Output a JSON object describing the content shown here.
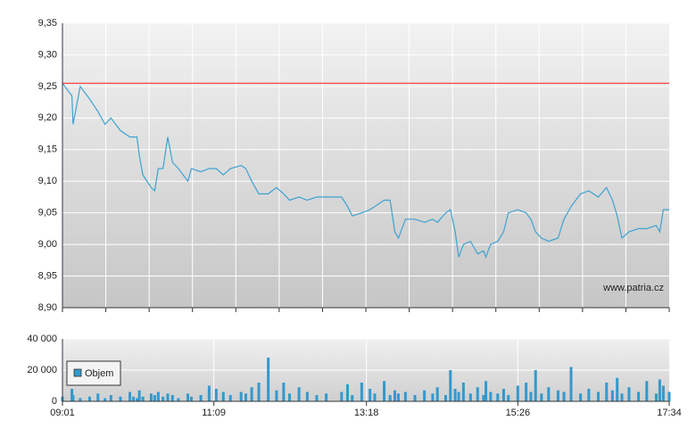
{
  "chart_data": [
    {
      "type": "line",
      "x": [
        "09:01",
        "09:09",
        "09:10",
        "09:16",
        "09:24",
        "09:31",
        "09:37",
        "09:42",
        "09:50",
        "09:58",
        "10:01",
        "10:04",
        "10:06",
        "10:09",
        "10:16",
        "10:19",
        "10:22",
        "10:26",
        "10:30",
        "10:34",
        "10:39",
        "10:47",
        "10:50",
        "10:58",
        "11:05",
        "11:11",
        "11:17",
        "11:23",
        "11:32",
        "11:36",
        "11:41",
        "11:47",
        "11:55",
        "12:02",
        "12:08",
        "12:13",
        "12:21",
        "12:28",
        "12:36",
        "12:44",
        "12:57",
        "13:02",
        "13:06",
        "13:14",
        "13:21",
        "13:25",
        "13:33",
        "13:38",
        "13:42",
        "13:45",
        "13:51",
        "13:59",
        "14:07",
        "14:14",
        "14:18",
        "14:25",
        "14:29",
        "14:33",
        "14:36",
        "14:40",
        "14:46",
        "14:52",
        "14:57",
        "14:59",
        "15:03",
        "15:09",
        "15:14",
        "15:18",
        "15:26",
        "15:33",
        "15:37",
        "15:41",
        "15:46",
        "15:52",
        "16:00",
        "16:05",
        "16:11",
        "16:19",
        "16:26",
        "16:34",
        "16:41",
        "16:46",
        "16:50",
        "16:54",
        "17:00",
        "17:08",
        "17:15",
        "17:23",
        "17:26",
        "17:29",
        "17:34"
      ],
      "values": [
        9.255,
        9.235,
        9.19,
        9.25,
        9.23,
        9.21,
        9.19,
        9.2,
        9.18,
        9.17,
        9.17,
        9.17,
        9.14,
        9.11,
        9.09,
        9.085,
        9.12,
        9.12,
        9.17,
        9.13,
        9.12,
        9.1,
        9.12,
        9.115,
        9.12,
        9.12,
        9.11,
        9.12,
        9.125,
        9.12,
        9.1,
        9.08,
        9.08,
        9.09,
        9.08,
        9.07,
        9.075,
        9.07,
        9.075,
        9.075,
        9.075,
        9.06,
        9.045,
        9.05,
        9.055,
        9.06,
        9.07,
        9.07,
        9.02,
        9.01,
        9.04,
        9.04,
        9.035,
        9.04,
        9.035,
        9.05,
        9.055,
        9.02,
        8.98,
        9.0,
        9.005,
        8.985,
        8.99,
        8.98,
        9.0,
        9.005,
        9.02,
        9.05,
        9.055,
        9.05,
        9.04,
        9.02,
        9.01,
        9.005,
        9.01,
        9.04,
        9.06,
        9.08,
        9.085,
        9.075,
        9.09,
        9.07,
        9.045,
        9.01,
        9.02,
        9.025,
        9.025,
        9.03,
        9.02,
        9.055,
        9.055
      ],
      "color": "#3fa2d2",
      "xlim": [
        "09:01",
        "17:34"
      ],
      "ylim": [
        8.9,
        9.35
      ],
      "yticks": [
        {
          "value": 8.9,
          "label": "8,90"
        },
        {
          "value": 8.95,
          "label": "8,95"
        },
        {
          "value": 9.0,
          "label": "9,00"
        },
        {
          "value": 9.05,
          "label": "9,05"
        },
        {
          "value": 9.1,
          "label": "9,10"
        },
        {
          "value": 9.15,
          "label": "9,15"
        },
        {
          "value": 9.2,
          "label": "9,20"
        },
        {
          "value": 9.25,
          "label": "9,25"
        },
        {
          "value": 9.3,
          "label": "9,30"
        },
        {
          "value": 9.35,
          "label": "9,35"
        }
      ],
      "reference_line": {
        "value": 9.255,
        "color": "#ff4444"
      },
      "watermark": "www.patria.cz",
      "grid": true
    },
    {
      "type": "bar",
      "x": [
        "09:01",
        "09:09",
        "09:10",
        "09:16",
        "09:24",
        "09:31",
        "09:37",
        "09:42",
        "09:50",
        "09:58",
        "10:01",
        "10:04",
        "10:06",
        "10:09",
        "10:16",
        "10:19",
        "10:22",
        "10:26",
        "10:30",
        "10:34",
        "10:39",
        "10:47",
        "10:50",
        "10:58",
        "11:05",
        "11:11",
        "11:17",
        "11:23",
        "11:32",
        "11:36",
        "11:41",
        "11:47",
        "11:55",
        "12:02",
        "12:08",
        "12:13",
        "12:21",
        "12:28",
        "12:36",
        "12:44",
        "12:57",
        "13:02",
        "13:06",
        "13:14",
        "13:21",
        "13:25",
        "13:33",
        "13:38",
        "13:42",
        "13:45",
        "13:51",
        "13:59",
        "14:07",
        "14:14",
        "14:18",
        "14:25",
        "14:29",
        "14:33",
        "14:36",
        "14:40",
        "14:46",
        "14:52",
        "14:57",
        "14:59",
        "15:03",
        "15:09",
        "15:14",
        "15:18",
        "15:26",
        "15:33",
        "15:37",
        "15:41",
        "15:46",
        "15:52",
        "16:00",
        "16:05",
        "16:11",
        "16:19",
        "16:26",
        "16:34",
        "16:41",
        "16:46",
        "16:50",
        "16:54",
        "17:00",
        "17:08",
        "17:15",
        "17:23",
        "17:26",
        "17:29",
        "17:34"
      ],
      "series": [
        {
          "name": "Objem",
          "color": "#3399cc",
          "values": [
            3000,
            8000,
            4000,
            2000,
            3000,
            5000,
            2000,
            4000,
            3000,
            6000,
            3000,
            2000,
            7000,
            3000,
            5000,
            4000,
            6000,
            3000,
            5000,
            4000,
            2000,
            5000,
            3000,
            4000,
            10000,
            8000,
            6000,
            4000,
            6000,
            5000,
            9000,
            12000,
            28000,
            7000,
            12000,
            5000,
            9000,
            6000,
            4000,
            5000,
            6000,
            11000,
            4000,
            12000,
            8000,
            5000,
            13000,
            4000,
            7000,
            5000,
            6000,
            4000,
            7000,
            5000,
            9000,
            4000,
            20000,
            8000,
            6000,
            12000,
            5000,
            9000,
            4000,
            13000,
            6000,
            5000,
            8000,
            4000,
            10000,
            12000,
            6000,
            20000,
            5000,
            9000,
            7000,
            6000,
            22000,
            5000,
            8000,
            6000,
            12000,
            7000,
            15000,
            5000,
            9000,
            6000,
            13000,
            5000,
            14000,
            10000,
            6000
          ]
        }
      ],
      "xlim": [
        "09:01",
        "17:34"
      ],
      "xticks": [
        "09:01",
        "11:09",
        "13:18",
        "15:26",
        "17:34"
      ],
      "ylim": [
        0,
        40000
      ],
      "yticks": [
        0,
        {
          "value": 20000,
          "label": "20 000"
        },
        {
          "value": 40000,
          "label": "40 000"
        }
      ],
      "legend": "top-left",
      "grid": true
    }
  ]
}
